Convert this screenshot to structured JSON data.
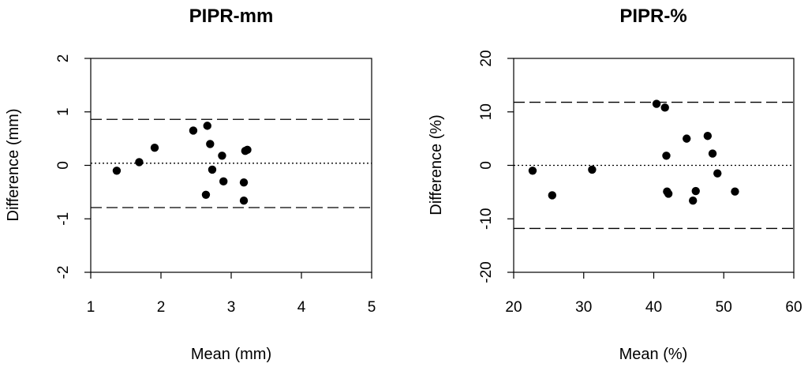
{
  "chart_data": [
    {
      "type": "scatter",
      "title": "PIPR-mm",
      "xlabel": "Mean (mm)",
      "ylabel": "Difference (mm)",
      "xlim": [
        1,
        5
      ],
      "ylim": [
        -2,
        2
      ],
      "xticks": [
        1,
        2,
        3,
        4,
        5
      ],
      "yticks": [
        -2,
        -1,
        0,
        1,
        2
      ],
      "grid": false,
      "reference_lines": {
        "upper_limit": 0.86,
        "mean_difference": 0.04,
        "lower_limit": -0.79
      },
      "points": [
        {
          "x": 1.37,
          "y": -0.1
        },
        {
          "x": 1.69,
          "y": 0.06
        },
        {
          "x": 1.91,
          "y": 0.33
        },
        {
          "x": 2.46,
          "y": 0.65
        },
        {
          "x": 2.64,
          "y": -0.55
        },
        {
          "x": 2.66,
          "y": 0.74
        },
        {
          "x": 2.7,
          "y": 0.4
        },
        {
          "x": 2.73,
          "y": -0.08
        },
        {
          "x": 2.87,
          "y": 0.18
        },
        {
          "x": 2.89,
          "y": -0.3
        },
        {
          "x": 3.18,
          "y": -0.32
        },
        {
          "x": 3.18,
          "y": -0.66
        },
        {
          "x": 3.2,
          "y": 0.27
        },
        {
          "x": 3.23,
          "y": 0.29
        }
      ]
    },
    {
      "type": "scatter",
      "title": "PIPR-%",
      "xlabel": "Mean (%)",
      "ylabel": "Difference (%)",
      "xlim": [
        20,
        60
      ],
      "ylim": [
        -20,
        20
      ],
      "xticks": [
        20,
        30,
        40,
        50,
        60
      ],
      "yticks": [
        -20,
        -10,
        0,
        10,
        20
      ],
      "grid": false,
      "reference_lines": {
        "upper_limit": 11.8,
        "mean_difference": 0.0,
        "lower_limit": -11.8
      },
      "points": [
        {
          "x": 22.7,
          "y": -1.0
        },
        {
          "x": 25.5,
          "y": -5.6
        },
        {
          "x": 31.2,
          "y": -0.8
        },
        {
          "x": 40.4,
          "y": 11.5
        },
        {
          "x": 41.6,
          "y": 10.8
        },
        {
          "x": 41.8,
          "y": 1.8
        },
        {
          "x": 41.9,
          "y": -4.9
        },
        {
          "x": 42.1,
          "y": -5.3
        },
        {
          "x": 44.7,
          "y": 5.0
        },
        {
          "x": 45.6,
          "y": -6.6
        },
        {
          "x": 46.0,
          "y": -4.8
        },
        {
          "x": 47.7,
          "y": 5.5
        },
        {
          "x": 48.4,
          "y": 2.2
        },
        {
          "x": 49.1,
          "y": -1.5
        },
        {
          "x": 51.6,
          "y": -4.9
        }
      ]
    }
  ]
}
